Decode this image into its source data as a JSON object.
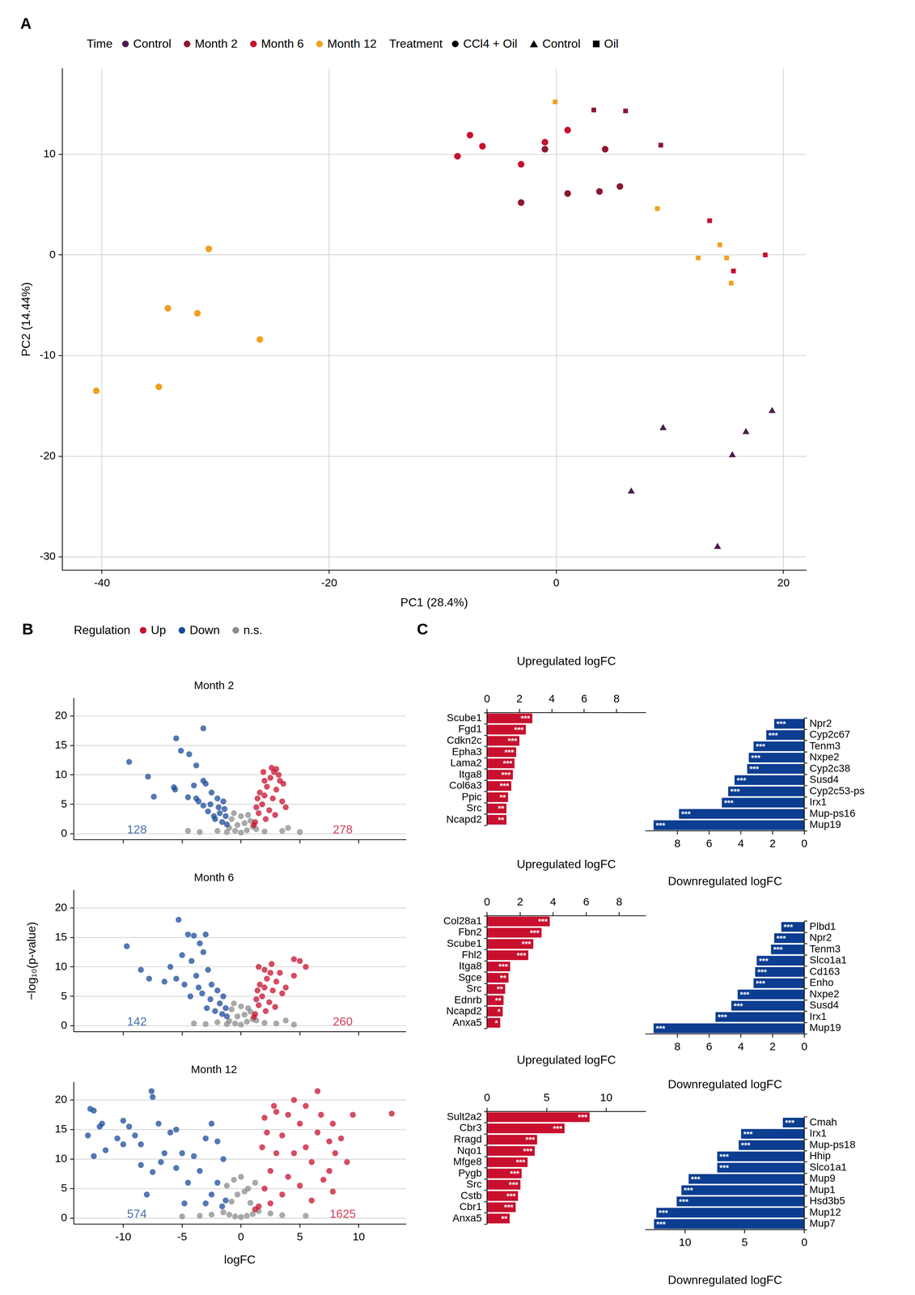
{
  "chart_data": [
    {
      "panel": "A",
      "type": "scatter",
      "xlabel": "PC1 (28.4%)",
      "ylabel": "PC2 (14.44%)",
      "xlim": [
        -43.5,
        22
      ],
      "ylim": [
        -31.3,
        18.5
      ],
      "xticks": [
        -40,
        -20,
        0,
        20
      ],
      "yticks": [
        -30,
        -20,
        -10,
        0,
        10
      ],
      "grid": true,
      "legend": "top",
      "legend_groups": [
        {
          "title": "Time",
          "entries": [
            {
              "name": "Control",
              "color": "#4a1c4c"
            },
            {
              "name": "Month 2",
              "color": "#8e1631"
            },
            {
              "name": "Month 6",
              "color": "#c8102e"
            },
            {
              "name": "Month 12",
              "color": "#f0a020"
            }
          ]
        },
        {
          "title": "Treatment",
          "entries": [
            {
              "name": "CCl4 + Oil",
              "marker": "circle"
            },
            {
              "name": "Control",
              "marker": "triangle"
            },
            {
              "name": "Oil",
              "marker": "square"
            }
          ]
        }
      ],
      "series": [
        {
          "time": "Month 12",
          "treatment": "CCl4 + Oil",
          "x": [
            -40.5,
            -35.0,
            -34.2,
            -31.6,
            -30.6,
            -26.1
          ],
          "y": [
            -13.5,
            -13.1,
            -5.3,
            -5.8,
            0.6,
            -8.4
          ]
        },
        {
          "time": "Month 12",
          "treatment": "Oil",
          "x": [
            -0.1,
            8.9,
            12.5,
            14.4,
            15.0,
            15.4
          ],
          "y": [
            15.2,
            4.6,
            -0.3,
            1.0,
            -0.3,
            -2.8
          ]
        },
        {
          "time": "Month 6",
          "treatment": "CCl4 + Oil",
          "x": [
            -8.7,
            -7.6,
            -6.5,
            -1.0,
            1.0,
            -3.1
          ],
          "y": [
            9.8,
            11.9,
            10.8,
            11.2,
            12.4,
            9.0
          ]
        },
        {
          "time": "Month 2",
          "treatment": "CCl4 + Oil",
          "x": [
            -1.0,
            -3.1,
            1.0,
            3.8,
            4.3,
            5.6
          ],
          "y": [
            10.5,
            5.2,
            6.1,
            6.3,
            10.5,
            6.8
          ]
        },
        {
          "time": "Month 2",
          "treatment": "Oil",
          "x": [
            3.3,
            6.1,
            9.2
          ],
          "y": [
            14.4,
            14.3,
            10.9
          ]
        },
        {
          "time": "Month 6",
          "treatment": "Oil",
          "x": [
            13.5,
            18.4,
            15.6
          ],
          "y": [
            3.4,
            0.0,
            -1.6
          ]
        },
        {
          "time": "Control",
          "treatment": "Control",
          "x": [
            9.4,
            6.6,
            14.2,
            15.5,
            16.7,
            19.0
          ],
          "y": [
            -17.2,
            -23.5,
            -29.0,
            -19.9,
            -17.6,
            -15.5
          ]
        }
      ]
    },
    {
      "panel": "B",
      "type": "scatter",
      "title": "Month 2",
      "legend": "top",
      "legend_title": "Regulation",
      "xlim": [
        -14.2,
        14
      ],
      "ylim": [
        -1,
        23
      ],
      "xticks": [
        -10,
        -5,
        0,
        5,
        10
      ],
      "yticks": [
        0,
        5,
        10,
        15,
        20
      ],
      "grid": "y",
      "tick_labels": "y",
      "series": [
        {
          "name": "Up",
          "color": "#c8102e",
          "count": 278,
          "x": [
            1.2,
            1.5,
            1.8,
            2.0,
            2.2,
            2.5,
            2.8,
            3.0,
            1.3,
            1.6,
            2.0,
            2.4,
            2.7,
            3.0,
            3.3,
            3.5,
            1.1,
            1.4,
            2.1,
            2.9,
            3.6,
            3.2,
            1.9,
            2.6,
            3.8
          ],
          "y": [
            2.0,
            3.5,
            5.0,
            6.5,
            8.0,
            9.5,
            10.5,
            11.0,
            4.5,
            7.0,
            9.0,
            4.0,
            6.0,
            7.5,
            9.0,
            5.5,
            1.5,
            6.0,
            2.5,
            3.2,
            8.5,
            10.0,
            10.5,
            11.2,
            4.5
          ]
        },
        {
          "name": "Down",
          "color": "#1a4b9b",
          "count": 128,
          "x": [
            -9.5,
            -7.9,
            -7.4,
            -5.5,
            -5.1,
            -3.2,
            -4.4,
            -3.8,
            -5.7,
            -3.2,
            -5.6,
            -4.0,
            -3.0,
            -2.5,
            -4.5,
            -3.8,
            -2.0,
            -1.5,
            -3.2,
            -2.8,
            -1.8,
            -1.3,
            -2.2,
            -1.6,
            -1.2,
            -3.6,
            -2.6,
            -1.9,
            -1.4,
            -2.3
          ],
          "y": [
            12.2,
            9.7,
            6.3,
            16.2,
            14.1,
            17.9,
            13.5,
            11.6,
            7.9,
            9.0,
            7.5,
            8.2,
            8.5,
            7.0,
            6.2,
            6.0,
            6.0,
            5.5,
            4.8,
            3.8,
            3.5,
            3.0,
            2.5,
            2.0,
            1.6,
            5.5,
            5.0,
            4.5,
            4.2,
            3.0
          ]
        },
        {
          "name": "n.s.",
          "color": "#8c8c8c",
          "x": [
            -1.0,
            -0.5,
            0.0,
            0.5,
            1.0,
            -0.8,
            0.8,
            -0.3,
            0.3,
            -2.0,
            2.0,
            3.5,
            -3.5,
            4.0,
            -1.2,
            1.3,
            0.0,
            -0.6,
            0.6,
            5.0,
            -4.5
          ],
          "y": [
            1.0,
            0.5,
            0.2,
            0.6,
            1.2,
            2.5,
            2.2,
            1.5,
            1.8,
            0.5,
            0.4,
            0.5,
            0.3,
            1.0,
            0.3,
            0.8,
            3.0,
            3.5,
            3.2,
            0.3,
            0.5
          ]
        }
      ]
    },
    {
      "type": "scatter",
      "title": "Month 6",
      "ylabel": "−log₁₀(p-value)",
      "xlim": [
        -14.2,
        14
      ],
      "ylim": [
        -1,
        23
      ],
      "xticks": [
        -10,
        -5,
        0,
        5,
        10
      ],
      "yticks": [
        0,
        5,
        10,
        15,
        20
      ],
      "grid": "y",
      "tick_labels": "y",
      "series": [
        {
          "name": "Up",
          "color": "#c8102e",
          "count": 260,
          "x": [
            1.2,
            1.5,
            1.8,
            2.0,
            2.2,
            2.5,
            1.5,
            1.3,
            1.6,
            2.0,
            2.4,
            2.7,
            3.0,
            3.3,
            3.5,
            1.1,
            1.4,
            2.1,
            2.9,
            5.0,
            4.5,
            5.5,
            4.5,
            3.8,
            2.6
          ],
          "y": [
            2.0,
            3.5,
            5.0,
            6.5,
            8.0,
            9.0,
            10.0,
            4.5,
            7.0,
            9.5,
            4.0,
            6.0,
            7.5,
            9.0,
            5.5,
            1.5,
            6.0,
            2.5,
            3.2,
            11.0,
            11.3,
            10.0,
            8.5,
            6.5,
            10.5
          ]
        },
        {
          "name": "Down",
          "color": "#1a4b9b",
          "count": 142,
          "x": [
            -9.7,
            -8.5,
            -7.8,
            -5.3,
            -4.5,
            -4.0,
            -3.5,
            -3.0,
            -5.0,
            -4.2,
            -3.2,
            -6.0,
            -5.5,
            -4.8,
            -3.8,
            -2.8,
            -2.5,
            -2.0,
            -1.5,
            -3.3,
            -2.6,
            -1.8,
            -1.3,
            -2.2,
            -1.6,
            -1.2,
            -3.6,
            -4.3,
            -2.9,
            -6.5
          ],
          "y": [
            13.5,
            9.5,
            8.0,
            18.0,
            15.5,
            15.3,
            14.0,
            15.5,
            12.0,
            11.0,
            12.5,
            10.0,
            8.0,
            7.0,
            8.5,
            9.5,
            7.0,
            6.0,
            5.0,
            5.5,
            4.5,
            3.8,
            3.0,
            2.5,
            2.0,
            1.6,
            6.5,
            5.0,
            3.0,
            7.5
          ]
        },
        {
          "name": "n.s.",
          "color": "#8c8c8c",
          "x": [
            -1.0,
            -0.5,
            0.0,
            0.5,
            1.0,
            -0.8,
            0.8,
            -0.3,
            0.3,
            -2.0,
            2.0,
            3.0,
            -3.0,
            3.8,
            -1.2,
            1.3,
            0.0,
            -0.6,
            0.6,
            4.5,
            -4.0
          ],
          "y": [
            0.8,
            0.4,
            0.2,
            0.7,
            1.1,
            2.8,
            2.4,
            1.6,
            1.9,
            0.6,
            0.5,
            0.4,
            0.3,
            0.9,
            0.3,
            0.9,
            3.3,
            3.8,
            3.0,
            0.2,
            0.4
          ]
        }
      ]
    },
    {
      "type": "scatter",
      "title": "Month 12",
      "xlabel": "logFC",
      "xlim": [
        -14.2,
        14
      ],
      "ylim": [
        -1,
        23
      ],
      "xticks": [
        -10,
        -5,
        0,
        5,
        10
      ],
      "yticks": [
        0,
        5,
        10,
        15,
        20
      ],
      "grid": "y",
      "series": [
        {
          "name": "Up",
          "color": "#c8102e",
          "count": 1625,
          "x": [
            1.5,
            2.0,
            2.5,
            3.0,
            3.5,
            2.0,
            2.8,
            4.0,
            5.0,
            6.5,
            6.8,
            7.8,
            9.5,
            12.8,
            7.5,
            8.0,
            7.5,
            7.0,
            6.0,
            5.5,
            4.5,
            4.0,
            3.5,
            2.5,
            5.0,
            6.5,
            8.5,
            9.0,
            5.5,
            4.5,
            1.8,
            3.0,
            1.2,
            2.2,
            6.0,
            7.8
          ],
          "y": [
            2.0,
            5.0,
            8.0,
            11.0,
            14.0,
            17.0,
            19.0,
            17.5,
            16.0,
            21.5,
            17.5,
            16.0,
            17.5,
            17.7,
            13.0,
            11.0,
            8.0,
            6.5,
            9.5,
            12.0,
            11.0,
            7.0,
            4.0,
            2.5,
            5.5,
            14.5,
            13.5,
            9.5,
            19.0,
            20.0,
            12.0,
            18.0,
            1.5,
            14.5,
            3.0,
            4.5
          ]
        },
        {
          "name": "Down",
          "color": "#1a4b9b",
          "count": 574,
          "x": [
            -12.8,
            -12.5,
            -11.8,
            -10.5,
            -12.0,
            -13.0,
            -12.5,
            -11.5,
            -10.0,
            -9.5,
            -9.0,
            -10.0,
            -8.5,
            -7.6,
            -7.5,
            -7.0,
            -6.0,
            -5.5,
            -5.0,
            -6.5,
            -7.5,
            -6.8,
            -4.0,
            -3.0,
            -2.5,
            -2.0,
            -1.5,
            -3.5,
            -2.0,
            -1.3,
            -2.5,
            -1.6,
            -3.0,
            -4.5,
            -4.8,
            -5.5,
            -8.0,
            -8.5
          ],
          "y": [
            18.5,
            18.2,
            16.0,
            13.5,
            15.5,
            14.0,
            10.5,
            11.5,
            16.5,
            15.5,
            14.0,
            12.5,
            12.5,
            21.5,
            20.5,
            16.0,
            14.5,
            15.0,
            11.0,
            11.0,
            7.8,
            9.5,
            10.5,
            13.5,
            16.0,
            13.0,
            10.0,
            8.0,
            6.0,
            3.0,
            4.0,
            2.0,
            2.5,
            6.0,
            2.5,
            8.5,
            4.0,
            9.0
          ]
        },
        {
          "name": "n.s.",
          "color": "#8c8c8c",
          "x": [
            -1.5,
            -1.0,
            -0.5,
            0.0,
            0.5,
            1.0,
            1.5,
            -0.8,
            0.8,
            -0.3,
            0.3,
            -2.5,
            2.5,
            -3.5,
            3.5,
            -1.2,
            1.2,
            0.0,
            -0.6,
            0.6,
            -5.0,
            5.5
          ],
          "y": [
            1.0,
            0.6,
            0.3,
            0.2,
            0.4,
            0.7,
            1.2,
            2.8,
            2.6,
            4.0,
            4.5,
            0.6,
            0.8,
            0.4,
            0.5,
            5.5,
            6.0,
            7.0,
            6.5,
            5.0,
            0.3,
            0.4
          ]
        }
      ]
    },
    {
      "panel": "C",
      "type": "bar",
      "orientation": "horizontal",
      "xlabel": "Upregulated logFC",
      "xlim": [
        0,
        9.8
      ],
      "xticks": [
        0,
        2,
        4,
        6,
        8
      ],
      "grid": false,
      "color": "#c8102e",
      "categories": [
        "Scube1",
        "Fgd1",
        "Cdkn2c",
        "Epha3",
        "Lama2",
        "Itga8",
        "Col6a3",
        "Ppic",
        "Src",
        "Ncapd2"
      ],
      "values": [
        2.8,
        2.4,
        2.0,
        1.8,
        1.7,
        1.6,
        1.5,
        1.3,
        1.2,
        1.2
      ],
      "significance": [
        "***",
        "***",
        "***",
        "***",
        "***",
        "***",
        "***",
        "**",
        "**",
        "**"
      ]
    },
    {
      "type": "bar",
      "orientation": "horizontal",
      "xlabel": "Downregulated logFC",
      "xlim": [
        10,
        0
      ],
      "xticks": [
        0,
        2,
        4,
        6,
        8
      ],
      "grid": false,
      "color": "#0b3d91",
      "categories": [
        "Npr2",
        "Cyp2c67",
        "Tenm3",
        "Nxpe2",
        "Cyp2c38",
        "Susd4",
        "Cyp2c53-ps",
        "Irx1",
        "Mup-ps16",
        "Mup19"
      ],
      "values": [
        1.9,
        2.4,
        3.2,
        3.5,
        3.6,
        4.4,
        4.8,
        5.2,
        7.9,
        9.5
      ],
      "significance": [
        "***",
        "***",
        "***",
        "***",
        "***",
        "***",
        "***",
        "***",
        "***",
        "***"
      ]
    },
    {
      "type": "bar",
      "orientation": "horizontal",
      "xlabel": "Upregulated logFC",
      "xlim": [
        0,
        9.6
      ],
      "xticks": [
        0,
        2,
        4,
        6,
        8
      ],
      "grid": false,
      "color": "#c8102e",
      "categories": [
        "Col28a1",
        "Fbn2",
        "Scube1",
        "Fhl2",
        "Itga8",
        "Sgce",
        "Src",
        "Ednrb",
        "Ncapd2",
        "Anxa5"
      ],
      "values": [
        3.8,
        3.3,
        2.8,
        2.5,
        1.4,
        1.3,
        1.1,
        1.0,
        0.95,
        0.8
      ],
      "significance": [
        "***",
        "***",
        "***",
        "***",
        "***",
        "**",
        "**",
        "**",
        "*",
        "*"
      ]
    },
    {
      "type": "bar",
      "orientation": "horizontal",
      "xlabel": "Downregulated logFC",
      "xlim": [
        10,
        0
      ],
      "xticks": [
        0,
        2,
        4,
        6,
        8
      ],
      "grid": false,
      "color": "#0b3d91",
      "categories": [
        "Plbd1",
        "Npr2",
        "Tenm3",
        "Slco1a1",
        "Cd163",
        "Enho",
        "Nxpe2",
        "Susd4",
        "Irx1",
        "Mup19"
      ],
      "values": [
        1.45,
        1.9,
        2.1,
        3.0,
        3.1,
        3.2,
        4.2,
        4.6,
        5.6,
        9.5
      ],
      "significance": [
        "***",
        "***",
        "***",
        "***",
        "***",
        "***",
        "***",
        "***",
        "***",
        "***"
      ]
    },
    {
      "type": "bar",
      "orientation": "horizontal",
      "xlabel": "Upregulated logFC",
      "xlim": [
        0,
        13.3
      ],
      "xticks": [
        0,
        5,
        10
      ],
      "grid": false,
      "color": "#c8102e",
      "categories": [
        "Sult2a2",
        "Cbr3",
        "Rragd",
        "Nqo1",
        "Mfge8",
        "Pygb",
        "Src",
        "Cstb",
        "Cbr1",
        "Anxa5"
      ],
      "values": [
        8.6,
        6.5,
        4.2,
        4.0,
        3.4,
        2.9,
        2.8,
        2.6,
        2.4,
        1.9
      ],
      "significance": [
        "***",
        "***",
        "***",
        "***",
        "***",
        "***",
        "***",
        "***",
        "***",
        "**"
      ]
    },
    {
      "type": "bar",
      "orientation": "horizontal",
      "xlabel": "Downregulated logFC",
      "xlim": [
        13.3,
        0
      ],
      "xticks": [
        0,
        5,
        10
      ],
      "grid": false,
      "color": "#0b3d91",
      "categories": [
        "Cmah",
        "Irx1",
        "Mup-ps18",
        "Hhip",
        "Slco1a1",
        "Mup9",
        "Mup1",
        "Hsd3b5",
        "Mup12",
        "Mup7"
      ],
      "values": [
        1.8,
        5.3,
        5.5,
        7.3,
        7.3,
        9.7,
        10.3,
        10.7,
        12.4,
        12.6
      ],
      "significance": [
        "***",
        "***",
        "***",
        "***",
        "***",
        "***",
        "***",
        "***",
        "***",
        "***"
      ]
    }
  ]
}
